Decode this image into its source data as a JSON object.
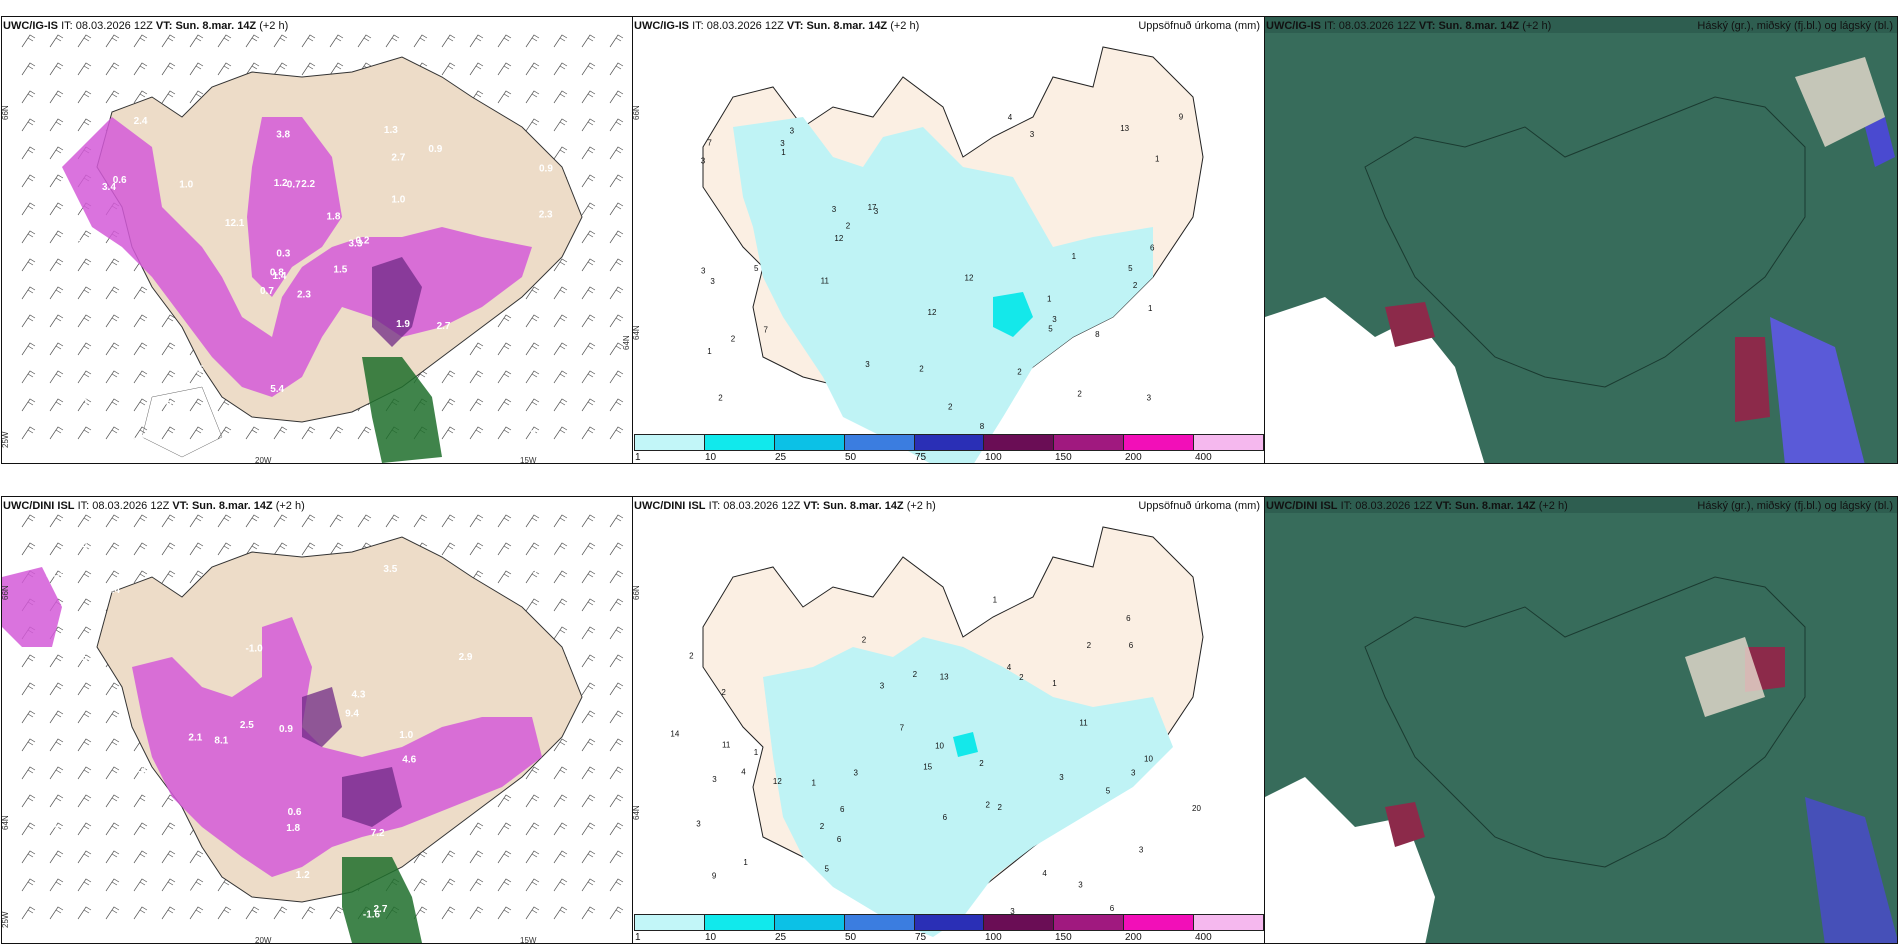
{
  "colors": {
    "land": "#eddcc8",
    "land_light": "#fbefe3",
    "precip_light": "#bff3f5",
    "precip_cyan": "#14e8ea",
    "magenta": "#d35ad8",
    "purple_dark": "#6f2a86",
    "green_dark": "#1e6e2c",
    "cloud_dark": "#2e5e50",
    "cloud_mid": "#3f7a66"
  },
  "panels": [
    {
      "id": "top-left",
      "model": "UWC/IG-IS",
      "it_label": "IT:",
      "it_value": "08.03.2026 12Z",
      "vt_label": "VT:",
      "vt_value": "Sun. 8.mar. 14Z",
      "lead": "(+2 h)",
      "lat_labels": [
        "66N",
        "25W",
        "20W",
        "15W",
        "64N"
      ],
      "values": [
        "2.3",
        "3.4",
        "1.4",
        "1.5",
        "3.3",
        "0.5",
        "1.3",
        "2.2",
        "2.7",
        "1.5",
        "2.4",
        "2.1",
        "1.6",
        "0.9",
        "0.7",
        "1.0",
        "5.4",
        "1.2",
        "1.8",
        "14.5",
        "12.1",
        "4.3",
        "0.8",
        "0.7",
        "0.2",
        "2.7",
        "0.6",
        "3.8",
        "5.5",
        "1.9",
        "2.3",
        "0.8",
        "5.4",
        "0.3",
        "1.0",
        "0.9"
      ]
    },
    {
      "id": "top-mid",
      "model": "UWC/IG-IS",
      "it_label": "IT:",
      "it_value": "08.03.2026 12Z",
      "vt_label": "VT:",
      "vt_value": "Sun. 8.mar. 14Z",
      "lead": "(+2 h)",
      "right_title": "Uppsöfnuð úrkoma (mm)",
      "lat_labels": [
        "66N",
        "64N"
      ],
      "values": [
        "1",
        "2",
        "2",
        "3",
        "3",
        "2",
        "1",
        "3",
        "3",
        "8",
        "3",
        "3",
        "7",
        "3",
        "3",
        "6",
        "12",
        "12",
        "17",
        "7",
        "9",
        "13",
        "12",
        "1",
        "4",
        "3",
        "3",
        "3",
        "1",
        "1",
        "2",
        "2",
        "2",
        "11",
        "5",
        "8",
        "5",
        "5",
        "2",
        "2",
        "1"
      ]
    },
    {
      "id": "top-right",
      "model": "UWC/IG-IS",
      "it_label": "IT:",
      "it_value": "08.03.2026 12Z",
      "vt_label": "VT:",
      "vt_value": "Sun. 8.mar. 14Z",
      "lead": "(+2 h)",
      "right_title": "Háský (gr.), miðský (fj.bl.) og lágský (bl.)"
    },
    {
      "id": "bottom-left",
      "model": "UWC/DINI ISL",
      "it_label": "IT:",
      "it_value": "08.03.2026 12Z",
      "vt_label": "VT:",
      "vt_value": "Sun. 8.mar. 14Z",
      "lead": "(+2 h)",
      "lat_labels": [
        "66N",
        "25W",
        "20W",
        "15W",
        "64N"
      ],
      "values": [
        "-1.1",
        "-1.6",
        "2.1",
        "1.1",
        "0.5",
        "1.4",
        "2.1",
        "-1.8",
        "-2.0",
        "-1.0",
        "1.5",
        "1.2",
        "2.5",
        "1.8",
        "3.5",
        "9.4",
        "5.9",
        "1.0",
        "8.1",
        "12.4",
        "7.2",
        "5.9",
        "4.3",
        "5.2",
        "2.9",
        "2.3",
        "-2.3",
        "-1.6",
        "4.0",
        "4.6",
        "0.9",
        "2.7",
        "0.6",
        "4.8",
        "2.3",
        "1.0",
        "0.6"
      ]
    },
    {
      "id": "bottom-mid",
      "model": "UWC/DINI ISL",
      "it_label": "IT:",
      "it_value": "08.03.2026 12Z",
      "vt_label": "VT:",
      "vt_value": "Sun. 8.mar. 14Z",
      "lead": "(+2 h)",
      "right_title": "Uppsöfnuð úrkoma (mm)",
      "lat_labels": [
        "66N",
        "64N"
      ],
      "values": [
        "6",
        "4",
        "2",
        "2",
        "3",
        "2",
        "1",
        "1",
        "1",
        "2",
        "2",
        "3",
        "6",
        "2",
        "2",
        "3",
        "3",
        "10",
        "14",
        "9",
        "6",
        "13",
        "11",
        "20",
        "10",
        "11",
        "12",
        "15",
        "7",
        "6",
        "2",
        "3",
        "2",
        "4",
        "3",
        "5",
        "3",
        "4",
        "2",
        "3",
        "6",
        "6",
        "5",
        "1",
        "3",
        "1"
      ]
    },
    {
      "id": "bottom-right",
      "model": "UWC/DINI ISL",
      "it_label": "IT:",
      "it_value": "08.03.2026 12Z",
      "vt_label": "VT:",
      "vt_value": "Sun. 8.mar. 14Z",
      "lead": "(+2 h)",
      "right_title": "Háský (gr.), miðský (fj.bl.) og lágský (bl.)"
    }
  ],
  "colorbar": {
    "labels": [
      "1",
      "10",
      "25",
      "50",
      "75",
      "100",
      "150",
      "200",
      "400"
    ],
    "colors": [
      "#c2f6f8",
      "#11e9ec",
      "#0cc1e6",
      "#3b7de0",
      "#2a2fb6",
      "#6a0d55",
      "#a0197f",
      "#f20fb8",
      "#f5b8ee"
    ]
  }
}
